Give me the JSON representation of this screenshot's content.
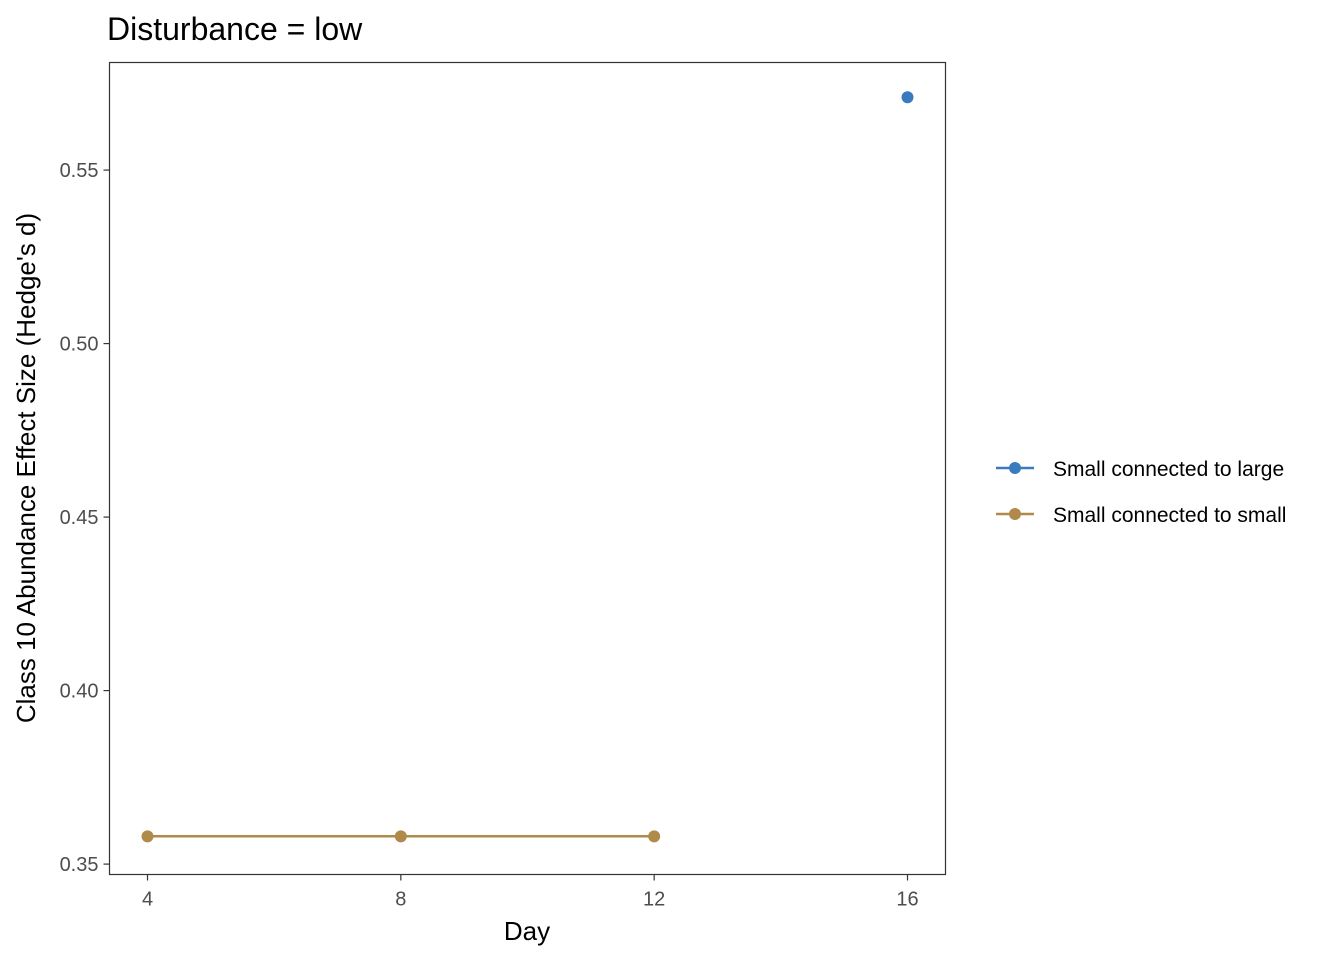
{
  "chart_data": {
    "type": "line",
    "title": "Disturbance = low",
    "xlabel": "Day",
    "ylabel": "Class 10 Abundance Effect Size (Hedge's d)",
    "xlim": [
      3.4,
      16.6
    ],
    "ylim": [
      0.347,
      0.581
    ],
    "x_ticks": [
      4,
      8,
      12,
      16
    ],
    "y_ticks": [
      0.35,
      0.4,
      0.45,
      0.5,
      0.55
    ],
    "y_tick_labels": [
      "0.35",
      "0.40",
      "0.45",
      "0.50",
      "0.55"
    ],
    "grid": false,
    "legend_position": "right",
    "series": [
      {
        "name": "Small connected to large",
        "color": "#3A7BBF",
        "x": [
          16
        ],
        "y": [
          0.571
        ]
      },
      {
        "name": "Small connected to small",
        "color": "#B08A4A",
        "x": [
          4,
          8,
          12
        ],
        "y": [
          0.358,
          0.358,
          0.358
        ]
      }
    ]
  }
}
